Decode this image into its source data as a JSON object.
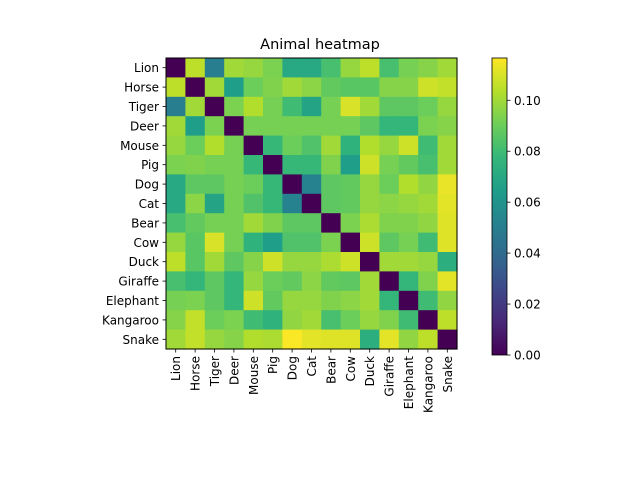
{
  "chart_data": {
    "type": "heatmap",
    "title": "Animal heatmap",
    "xlabel": "",
    "ylabel": "",
    "colormap": "viridis",
    "x_categories": [
      "Lion",
      "Horse",
      "Tiger",
      "Deer",
      "Mouse",
      "Pig",
      "Dog",
      "Cat",
      "Bear",
      "Cow",
      "Duck",
      "Giraffe",
      "Elephant",
      "Kangaroo",
      "Snake"
    ],
    "y_categories": [
      "Lion",
      "Horse",
      "Tiger",
      "Deer",
      "Mouse",
      "Pig",
      "Dog",
      "Cat",
      "Bear",
      "Cow",
      "Duck",
      "Giraffe",
      "Elephant",
      "Kangaroo",
      "Snake"
    ],
    "values": [
      [
        0.0,
        0.105,
        0.05,
        0.1,
        0.098,
        0.093,
        0.07,
        0.07,
        0.082,
        0.098,
        0.105,
        0.082,
        0.092,
        0.095,
        0.1
      ],
      [
        0.105,
        0.0,
        0.1,
        0.065,
        0.09,
        0.094,
        0.1,
        0.096,
        0.088,
        0.086,
        0.086,
        0.095,
        0.095,
        0.108,
        0.106
      ],
      [
        0.05,
        0.1,
        0.0,
        0.093,
        0.103,
        0.092,
        0.08,
        0.068,
        0.092,
        0.11,
        0.1,
        0.087,
        0.087,
        0.09,
        0.098
      ],
      [
        0.1,
        0.065,
        0.093,
        0.0,
        0.092,
        0.092,
        0.092,
        0.092,
        0.092,
        0.092,
        0.087,
        0.077,
        0.077,
        0.093,
        0.095
      ],
      [
        0.098,
        0.09,
        0.103,
        0.092,
        0.0,
        0.078,
        0.09,
        0.084,
        0.1,
        0.075,
        0.103,
        0.098,
        0.108,
        0.08,
        0.1
      ],
      [
        0.093,
        0.094,
        0.092,
        0.092,
        0.078,
        0.0,
        0.078,
        0.078,
        0.094,
        0.065,
        0.108,
        0.092,
        0.088,
        0.082,
        0.1
      ],
      [
        0.07,
        0.087,
        0.087,
        0.092,
        0.09,
        0.078,
        0.0,
        0.052,
        0.087,
        0.088,
        0.098,
        0.09,
        0.103,
        0.097,
        0.113
      ],
      [
        0.07,
        0.096,
        0.068,
        0.092,
        0.084,
        0.078,
        0.052,
        0.0,
        0.087,
        0.088,
        0.098,
        0.096,
        0.098,
        0.1,
        0.112
      ],
      [
        0.082,
        0.088,
        0.092,
        0.092,
        0.1,
        0.094,
        0.087,
        0.087,
        0.0,
        0.093,
        0.102,
        0.094,
        0.094,
        0.097,
        0.111
      ],
      [
        0.098,
        0.086,
        0.11,
        0.092,
        0.075,
        0.065,
        0.084,
        0.084,
        0.093,
        0.0,
        0.108,
        0.087,
        0.092,
        0.08,
        0.111
      ],
      [
        0.105,
        0.086,
        0.1,
        0.087,
        0.095,
        0.108,
        0.098,
        0.098,
        0.102,
        0.108,
        0.0,
        0.1,
        0.1,
        0.098,
        0.073
      ],
      [
        0.082,
        0.077,
        0.087,
        0.077,
        0.098,
        0.09,
        0.088,
        0.096,
        0.088,
        0.087,
        0.1,
        0.0,
        0.077,
        0.094,
        0.112
      ],
      [
        0.092,
        0.093,
        0.087,
        0.077,
        0.108,
        0.088,
        0.098,
        0.098,
        0.094,
        0.096,
        0.1,
        0.077,
        0.0,
        0.08,
        0.097
      ],
      [
        0.095,
        0.106,
        0.09,
        0.093,
        0.08,
        0.075,
        0.097,
        0.1,
        0.082,
        0.09,
        0.098,
        0.094,
        0.08,
        0.0,
        0.105
      ],
      [
        0.1,
        0.106,
        0.098,
        0.095,
        0.103,
        0.102,
        0.116,
        0.112,
        0.111,
        0.111,
        0.073,
        0.112,
        0.097,
        0.105,
        0.0
      ]
    ],
    "colorbar": {
      "min": 0.0,
      "max": 0.1166,
      "ticks": [
        0.0,
        0.02,
        0.04,
        0.06,
        0.08,
        0.1
      ],
      "tick_labels": [
        "0.00",
        "0.02",
        "0.04",
        "0.06",
        "0.08",
        "0.10"
      ]
    },
    "grid": false,
    "legend": "colorbar-right"
  }
}
